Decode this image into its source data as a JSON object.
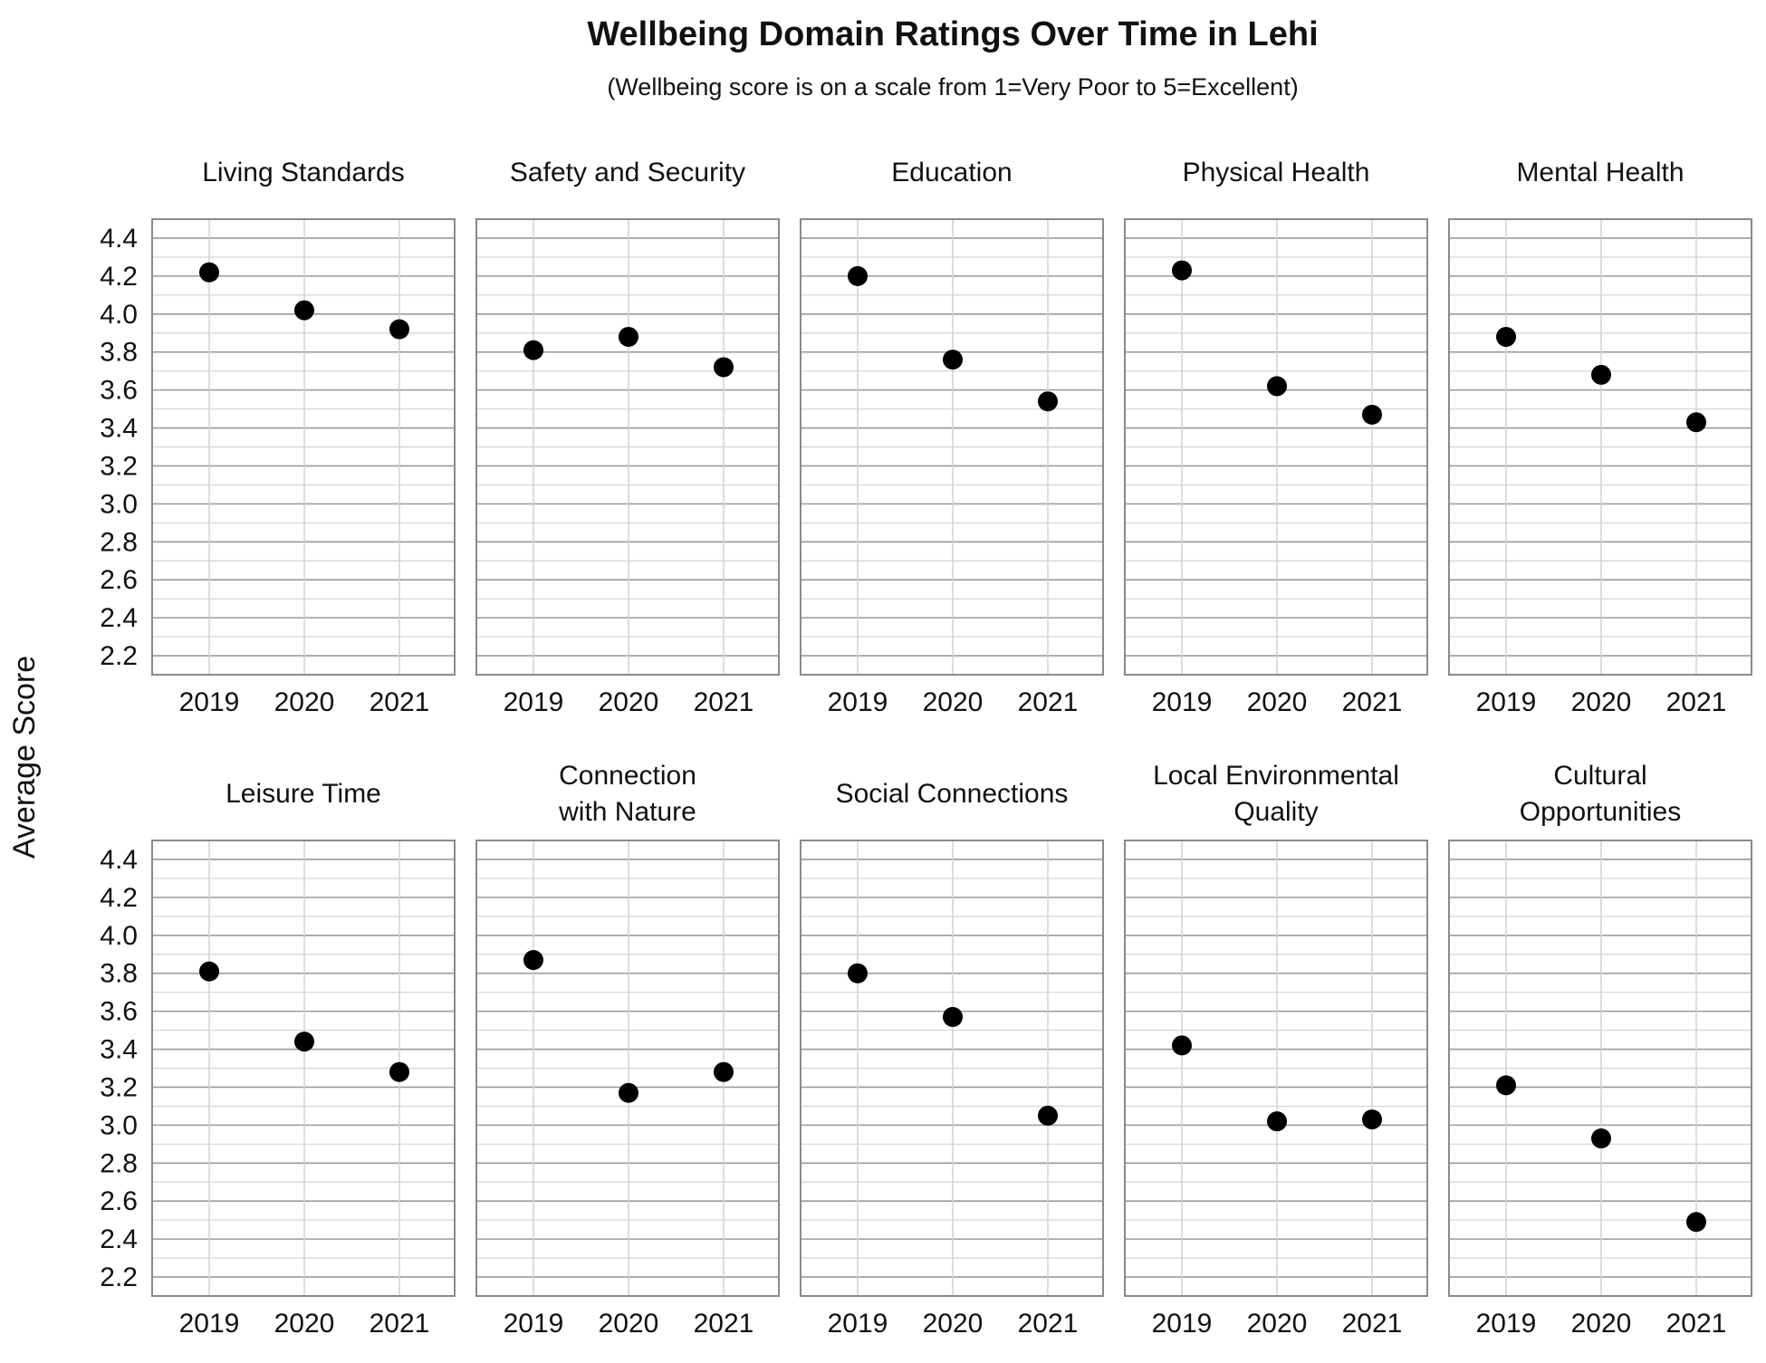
{
  "chart_data": {
    "type": "scatter",
    "title": "Wellbeing Domain Ratings Over Time in Lehi",
    "subtitle": "(Wellbeing score is on a scale from 1=Very Poor to 5=Excellent)",
    "ylabel": "Average Score",
    "xlabel": "",
    "ylim": [
      2.1,
      4.5
    ],
    "yticks": [
      2.2,
      2.4,
      2.6,
      2.8,
      3.0,
      3.2,
      3.4,
      3.6,
      3.8,
      4.0,
      4.2,
      4.4
    ],
    "x": [
      "2019",
      "2020",
      "2021"
    ],
    "grid": true,
    "marker_color": "#000000",
    "panels": [
      {
        "title": [
          "Living Standards"
        ],
        "values": [
          4.22,
          4.02,
          3.92
        ]
      },
      {
        "title": [
          "Safety and Security"
        ],
        "values": [
          3.81,
          3.88,
          3.72
        ]
      },
      {
        "title": [
          "Education"
        ],
        "values": [
          4.2,
          3.76,
          3.54
        ]
      },
      {
        "title": [
          "Physical Health"
        ],
        "values": [
          4.23,
          3.62,
          3.47
        ]
      },
      {
        "title": [
          "Mental Health"
        ],
        "values": [
          3.88,
          3.68,
          3.43
        ]
      },
      {
        "title": [
          "Leisure Time"
        ],
        "values": [
          3.81,
          3.44,
          3.28
        ]
      },
      {
        "title": [
          "Connection",
          "with Nature"
        ],
        "values": [
          3.87,
          3.17,
          3.28
        ]
      },
      {
        "title": [
          "Social Connections"
        ],
        "values": [
          3.8,
          3.57,
          3.05
        ]
      },
      {
        "title": [
          "Local Environmental",
          "Quality"
        ],
        "values": [
          3.42,
          3.02,
          3.03
        ]
      },
      {
        "title": [
          "Cultural",
          "Opportunities"
        ],
        "values": [
          3.21,
          2.93,
          2.49
        ]
      }
    ]
  }
}
